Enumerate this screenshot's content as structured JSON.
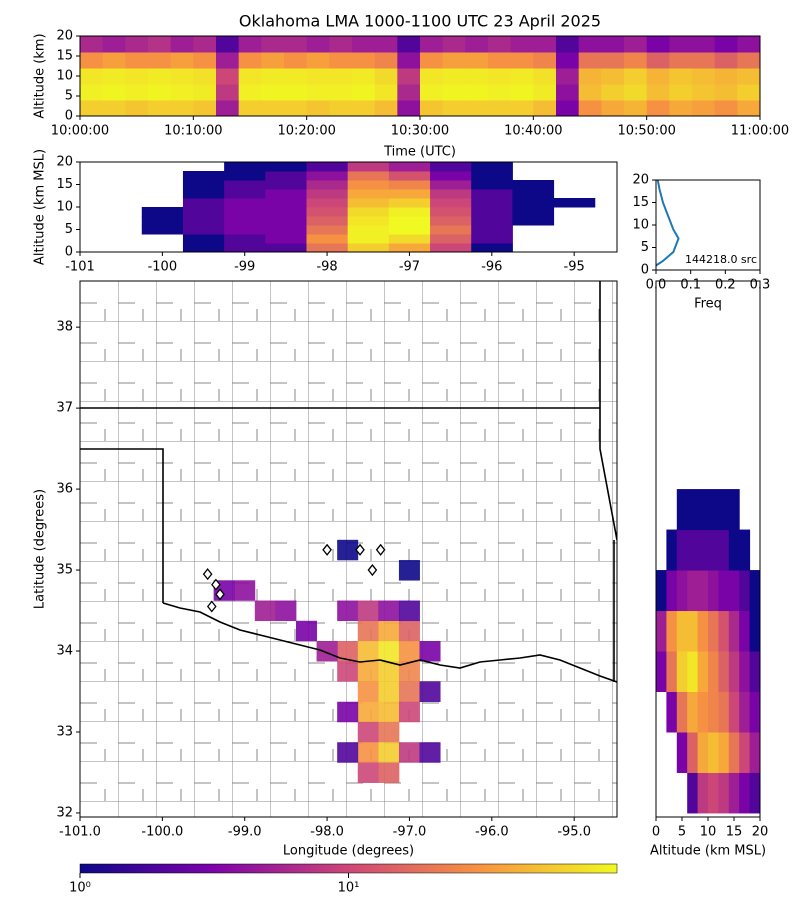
{
  "title": "Oklahoma LMA 1000-1100 UTC 23 April 2025",
  "chart_data": [
    {
      "type": "heatmap",
      "ylabel": "Altitude (km)",
      "xlabel": "Time (UTC)",
      "x": [
        "10:01:00",
        "10:03:00",
        "10:05:00",
        "10:07:00",
        "10:09:00",
        "10:11:00",
        "10:13:00",
        "10:15:00",
        "10:17:00",
        "10:19:00",
        "10:21:00",
        "10:23:00",
        "10:25:00",
        "10:27:00",
        "10:29:00",
        "10:31:00",
        "10:33:00",
        "10:35:00",
        "10:37:00",
        "10:39:00",
        "10:41:00",
        "10:43:00",
        "10:45:00",
        "10:47:00",
        "10:49:00",
        "10:51:00",
        "10:53:00",
        "10:55:00",
        "10:57:00",
        "10:59:00"
      ],
      "y": [
        2,
        6,
        10,
        14,
        18
      ],
      "values": [
        [
          60,
          60,
          55,
          60,
          60,
          55,
          5,
          60,
          60,
          60,
          55,
          60,
          60,
          50,
          4,
          55,
          60,
          60,
          60,
          60,
          50,
          3,
          30,
          40,
          45,
          30,
          40,
          35,
          30,
          40
        ],
        [
          90,
          95,
          90,
          95,
          90,
          85,
          8,
          90,
          95,
          95,
          90,
          90,
          95,
          80,
          6,
          90,
          95,
          95,
          90,
          95,
          85,
          4,
          50,
          60,
          70,
          50,
          60,
          55,
          50,
          60
        ],
        [
          80,
          85,
          80,
          85,
          80,
          75,
          10,
          80,
          85,
          85,
          80,
          80,
          85,
          70,
          8,
          80,
          85,
          85,
          80,
          85,
          75,
          5,
          45,
          50,
          60,
          45,
          55,
          50,
          45,
          50
        ],
        [
          30,
          35,
          30,
          30,
          35,
          30,
          5,
          30,
          35,
          30,
          35,
          30,
          30,
          25,
          4,
          30,
          35,
          35,
          30,
          30,
          25,
          3,
          20,
          20,
          25,
          15,
          20,
          20,
          15,
          20
        ],
        [
          6,
          5,
          6,
          7,
          5,
          6,
          2,
          5,
          6,
          6,
          5,
          6,
          5,
          5,
          2,
          5,
          6,
          5,
          6,
          5,
          5,
          2,
          4,
          4,
          5,
          3,
          4,
          4,
          3,
          4
        ]
      ],
      "xlim": [
        "10:00:00",
        "11:00:00"
      ],
      "xticks": [
        "10:00:00",
        "10:10:00",
        "10:20:00",
        "10:30:00",
        "10:40:00",
        "10:50:00",
        "11:00:00"
      ],
      "ylim": [
        0,
        20
      ],
      "yticks": [
        0,
        5,
        10,
        15,
        20
      ]
    },
    {
      "type": "heatmap",
      "ylabel": "Altitude (km MSL)",
      "x": [
        -100.5,
        -100,
        -99.5,
        -99,
        -98.5,
        -98,
        -97.5,
        -97,
        -96.5,
        -96,
        -95.5,
        -95
      ],
      "y": [
        1,
        3,
        5,
        7,
        9,
        11,
        13,
        15,
        17,
        19
      ],
      "values": [
        [
          0,
          0,
          1,
          2,
          2,
          20,
          60,
          40,
          10,
          1,
          0,
          0
        ],
        [
          0,
          0,
          1,
          2,
          3,
          30,
          90,
          70,
          15,
          2,
          0,
          0
        ],
        [
          0,
          1,
          2,
          3,
          3,
          20,
          90,
          100,
          20,
          2,
          0,
          0
        ],
        [
          0,
          1,
          2,
          3,
          3,
          15,
          80,
          100,
          15,
          2,
          1,
          0
        ],
        [
          0,
          1,
          2,
          3,
          3,
          12,
          70,
          90,
          12,
          2,
          1,
          0
        ],
        [
          0,
          0,
          2,
          3,
          3,
          10,
          50,
          60,
          10,
          2,
          1,
          1
        ],
        [
          0,
          0,
          1,
          2,
          3,
          8,
          40,
          40,
          8,
          2,
          1,
          0
        ],
        [
          0,
          0,
          1,
          2,
          2,
          6,
          30,
          25,
          5,
          1,
          1,
          0
        ],
        [
          0,
          0,
          1,
          1,
          2,
          4,
          20,
          12,
          3,
          1,
          0,
          0
        ],
        [
          0,
          0,
          0,
          1,
          1,
          2,
          8,
          5,
          2,
          1,
          0,
          0
        ]
      ],
      "xlim": [
        -101,
        -94.48
      ],
      "xticks": [
        -101,
        -100,
        -99,
        -98,
        -97,
        -96,
        -95
      ],
      "ylim": [
        0,
        20
      ],
      "yticks": [
        0,
        5,
        10,
        15,
        20
      ]
    },
    {
      "type": "line",
      "xlabel": "Freq",
      "annotation": "144218.0 src",
      "color": "#1f77b4",
      "values": [
        0,
        0.02,
        0.05,
        0.065,
        0.05,
        0.035,
        0.02,
        0.01,
        0.005
      ],
      "y": [
        1,
        2,
        4,
        7,
        9,
        12,
        15,
        18,
        20
      ],
      "xlim": [
        0,
        0.3
      ],
      "xticks": [
        {
          "value": 0,
          "label": "0.0"
        },
        {
          "value": 0.1,
          "label": "0.1"
        },
        {
          "value": 0.2,
          "label": "0.2"
        },
        {
          "value": 0.3,
          "label": "0.3"
        }
      ],
      "ylim": [
        0,
        20
      ],
      "yticks": [
        0,
        5,
        10,
        15,
        20
      ]
    },
    {
      "type": "map",
      "xlabel": "Longitude (degrees)",
      "ylabel": "Latitude (degrees)",
      "lon": [
        -97.5,
        -97.25,
        -97.0,
        -97.75,
        -97.5,
        -97.25,
        -97.0,
        -97.75,
        -97.5,
        -97.25,
        -97.0,
        -97.5,
        -97.25,
        -97.0,
        -97.5,
        -97.25,
        -97.0,
        -97.5,
        -97.25,
        -97.5,
        -97.25,
        -97.0,
        -97.5,
        -97.25,
        -98.0,
        -98.25,
        -98.5,
        -98.75,
        -99.0,
        -99.25,
        -97.75,
        -97.5,
        -97.25,
        -97.0,
        -96.75,
        -96.75,
        -97.75,
        -97.75,
        -96.75,
        -97.0,
        -97.75
      ],
      "lat": [
        34.25,
        34.25,
        34.25,
        34.0,
        34.0,
        34.0,
        34.0,
        33.75,
        33.75,
        33.75,
        33.75,
        33.5,
        33.5,
        33.5,
        33.25,
        33.25,
        33.25,
        33.0,
        33.0,
        32.75,
        32.75,
        32.75,
        32.5,
        32.5,
        34.0,
        34.25,
        34.5,
        34.5,
        34.75,
        34.75,
        34.5,
        34.5,
        34.5,
        34.5,
        34.0,
        33.5,
        33.25,
        32.75,
        32.75,
        35.0,
        35.25
      ],
      "values": [
        20,
        40,
        15,
        15,
        50,
        80,
        30,
        10,
        40,
        60,
        25,
        30,
        60,
        20,
        40,
        50,
        10,
        10,
        20,
        30,
        60,
        8,
        10,
        15,
        5,
        3,
        4,
        5,
        4,
        3,
        4,
        8,
        4,
        2,
        3,
        2,
        3,
        2,
        2,
        1,
        1
      ],
      "stations": {
        "lon": [
          -99.45,
          -99.35,
          -99.3,
          -99.4,
          -98.0,
          -97.6,
          -97.35,
          -97.45
        ],
        "lat": [
          34.95,
          34.82,
          34.7,
          34.55,
          35.25,
          35.25,
          35.25,
          35.0
        ]
      },
      "xlim": [
        -101,
        -94.48
      ],
      "xticks": [
        {
          "value": -101,
          "label": "-101.0"
        },
        {
          "value": -100,
          "label": "-100.0"
        },
        {
          "value": -99,
          "label": "-99.0"
        },
        {
          "value": -98,
          "label": "-98.0"
        },
        {
          "value": -97,
          "label": "-97.0"
        },
        {
          "value": -96,
          "label": "-96.0"
        },
        {
          "value": -95,
          "label": "-95.0"
        }
      ],
      "ylim": [
        31.95,
        38.57
      ],
      "yticks": [
        32,
        33,
        34,
        35,
        36,
        37,
        38
      ]
    },
    {
      "type": "heatmap",
      "xlabel": "Altitude (km MSL)",
      "x": [
        1,
        3,
        5,
        7,
        9,
        11,
        13,
        15,
        17,
        19
      ],
      "y": [
        32.25,
        32.75,
        33.25,
        33.75,
        34.25,
        34.75,
        35.25,
        35.75
      ],
      "values": [
        [
          0,
          0,
          0,
          2,
          8,
          10,
          8,
          5,
          3,
          2
        ],
        [
          0,
          0,
          3,
          15,
          40,
          50,
          40,
          20,
          10,
          5
        ],
        [
          0,
          3,
          20,
          40,
          30,
          25,
          20,
          10,
          5,
          3
        ],
        [
          3,
          20,
          60,
          80,
          40,
          25,
          15,
          8,
          4,
          2
        ],
        [
          5,
          30,
          50,
          50,
          30,
          20,
          12,
          6,
          3,
          1
        ],
        [
          1,
          3,
          4,
          5,
          5,
          4,
          3,
          3,
          2,
          1
        ],
        [
          0,
          1,
          2,
          2,
          2,
          2,
          2,
          1,
          1,
          0
        ],
        [
          0,
          0,
          1,
          1,
          1,
          1,
          1,
          1,
          0,
          0
        ]
      ],
      "xlim": [
        0,
        20
      ],
      "xticks": [
        0,
        5,
        10,
        15,
        20
      ],
      "ylim": [
        31.95,
        38.57
      ]
    }
  ],
  "colorbar": {
    "scale": "log",
    "lim": [
      1,
      100
    ],
    "colormap": "plasma",
    "ticks": [
      {
        "value": 1,
        "label": "10⁰"
      },
      {
        "value": 10,
        "label": "10¹"
      }
    ]
  }
}
